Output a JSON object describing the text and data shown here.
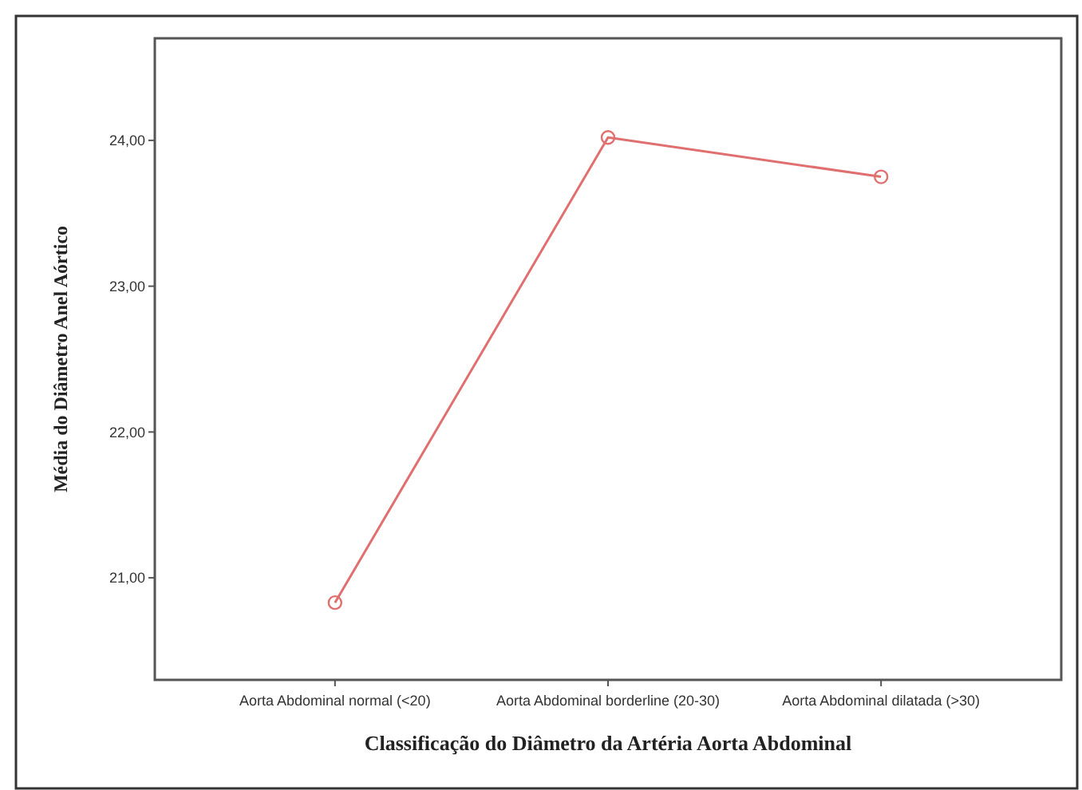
{
  "chart_data": {
    "type": "line",
    "xlabel": "Classificação do Diâmetro da Artéria Aorta Abdominal",
    "ylabel": "Média do Diâmetro Anel Aórtico",
    "categories": [
      "Aorta Abdominal normal (<20)",
      "Aorta Abdominal borderline (20-30)",
      "Aorta Abdominal dilatada (>30)"
    ],
    "series": [
      {
        "color": "#e07070",
        "values": [
          20.83,
          24.02,
          23.75
        ]
      }
    ],
    "ylim": [
      20.3,
      24.7
    ],
    "yticks": [
      {
        "value": 21,
        "label": "21,00"
      },
      {
        "value": 22,
        "label": "22,00"
      },
      {
        "value": 23,
        "label": "23,00"
      },
      {
        "value": 24,
        "label": "24,00"
      }
    ],
    "marker": "circle",
    "line_style": "solid",
    "grid": false
  }
}
